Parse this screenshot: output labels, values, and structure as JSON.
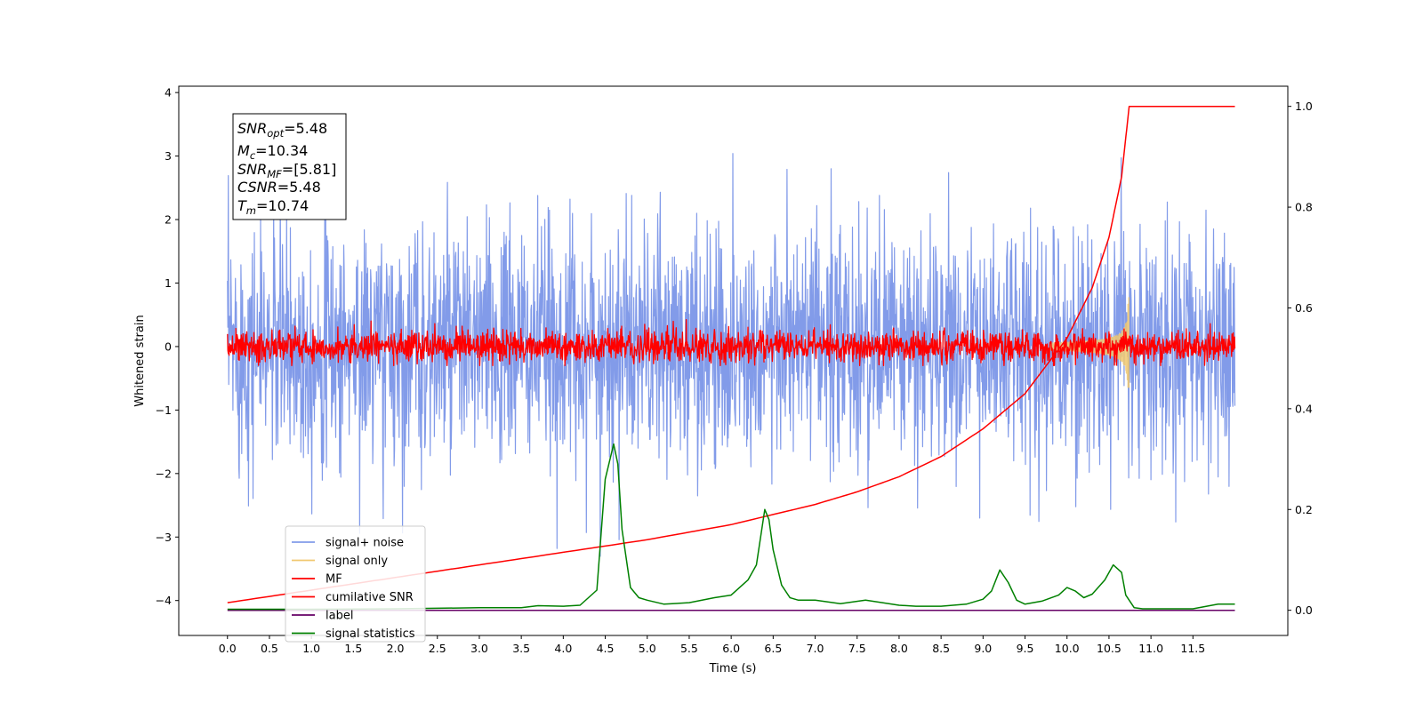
{
  "chart_data": {
    "type": "line",
    "xlabel": "Time (s)",
    "ylabel": "Whitened strain",
    "xlim": [
      -0.58,
      12.63
    ],
    "ylim": [
      -4.55,
      4.1
    ],
    "y2lim": [
      -0.05,
      1.04
    ],
    "x_ticks": [
      "0.0",
      "0.5",
      "1.0",
      "1.5",
      "2.0",
      "2.5",
      "3.0",
      "3.5",
      "4.0",
      "4.5",
      "5.0",
      "5.5",
      "6.0",
      "6.5",
      "7.0",
      "7.5",
      "8.0",
      "8.5",
      "9.0",
      "9.5",
      "10.0",
      "10.5",
      "11.0",
      "11.5"
    ],
    "y_ticks": [
      "4",
      "3",
      "2",
      "1",
      "0",
      "−1",
      "−2",
      "−3",
      "−4"
    ],
    "y2_ticks": [
      "1.0",
      "0.8",
      "0.6",
      "0.4",
      "0.2",
      "0.0"
    ],
    "legend_placement": "lower left",
    "grid": false,
    "annotation": {
      "snr_opt_label": "SNR",
      "snr_opt_sub": "opt",
      "snr_opt_value": "=5.48",
      "mc_label": "M",
      "mc_sub": "c",
      "mc_value": "=10.34",
      "snr_mf_label": "SNR",
      "snr_mf_sub": "MF",
      "snr_mf_value": "=[5.81]",
      "csnr_label": "CSNR",
      "csnr_value": "=5.48",
      "tm_label": "T",
      "tm_sub": "m",
      "tm_value": "=10.74"
    },
    "series": [
      {
        "name": "signal+ noise",
        "color": "#7b96e8",
        "axis": "left",
        "kind": "noise",
        "x_range": [
          0.0,
          12.0
        ],
        "std": 0.95,
        "max": 3.7,
        "min": -4.2
      },
      {
        "name": "signal only",
        "color": "#f0c870",
        "axis": "left",
        "kind": "chirp",
        "merger_time": 10.74,
        "peak": 0.8,
        "min": -0.65
      },
      {
        "name": "MF",
        "color": "#ff0000",
        "axis": "left",
        "kind": "noise",
        "x_range": [
          0.0,
          12.0
        ],
        "std": 0.12,
        "max": 0.6,
        "min": -0.3
      },
      {
        "name": "cumilative SNR",
        "color": "#ff0000",
        "axis": "right",
        "x": [
          0.0,
          1.0,
          2.0,
          3.0,
          4.0,
          5.0,
          6.0,
          7.0,
          7.5,
          8.0,
          8.5,
          9.0,
          9.5,
          10.0,
          10.3,
          10.5,
          10.65,
          10.74,
          12.0
        ],
        "y": [
          0.015,
          0.04,
          0.065,
          0.09,
          0.115,
          0.14,
          0.17,
          0.21,
          0.235,
          0.265,
          0.305,
          0.36,
          0.43,
          0.54,
          0.64,
          0.74,
          0.86,
          1.0,
          1.0
        ]
      },
      {
        "name": "label",
        "color": "#660066",
        "axis": "right",
        "x": [
          0.0,
          12.0
        ],
        "y": [
          0.0,
          0.0
        ]
      },
      {
        "name": "signal statistics",
        "color": "#008000",
        "axis": "right",
        "x": [
          0.0,
          1.0,
          2.0,
          3.0,
          3.5,
          3.7,
          4.0,
          4.2,
          4.4,
          4.5,
          4.6,
          4.65,
          4.7,
          4.8,
          4.9,
          5.0,
          5.2,
          5.5,
          5.8,
          6.0,
          6.2,
          6.3,
          6.4,
          6.45,
          6.5,
          6.6,
          6.7,
          6.8,
          7.0,
          7.3,
          7.6,
          7.8,
          8.0,
          8.2,
          8.5,
          8.8,
          9.0,
          9.1,
          9.2,
          9.3,
          9.4,
          9.5,
          9.7,
          9.9,
          10.0,
          10.1,
          10.2,
          10.3,
          10.45,
          10.55,
          10.65,
          10.7,
          10.8,
          10.9,
          11.0,
          11.5,
          11.8,
          12.0
        ],
        "y": [
          0.002,
          0.002,
          0.003,
          0.005,
          0.005,
          0.009,
          0.008,
          0.01,
          0.04,
          0.26,
          0.33,
          0.29,
          0.16,
          0.045,
          0.025,
          0.02,
          0.012,
          0.015,
          0.025,
          0.03,
          0.06,
          0.09,
          0.2,
          0.18,
          0.12,
          0.05,
          0.025,
          0.02,
          0.02,
          0.013,
          0.02,
          0.015,
          0.01,
          0.008,
          0.008,
          0.012,
          0.022,
          0.038,
          0.08,
          0.055,
          0.02,
          0.012,
          0.018,
          0.03,
          0.045,
          0.038,
          0.025,
          0.032,
          0.06,
          0.09,
          0.075,
          0.03,
          0.005,
          0.003,
          0.003,
          0.003,
          0.012,
          0.012
        ]
      }
    ]
  }
}
